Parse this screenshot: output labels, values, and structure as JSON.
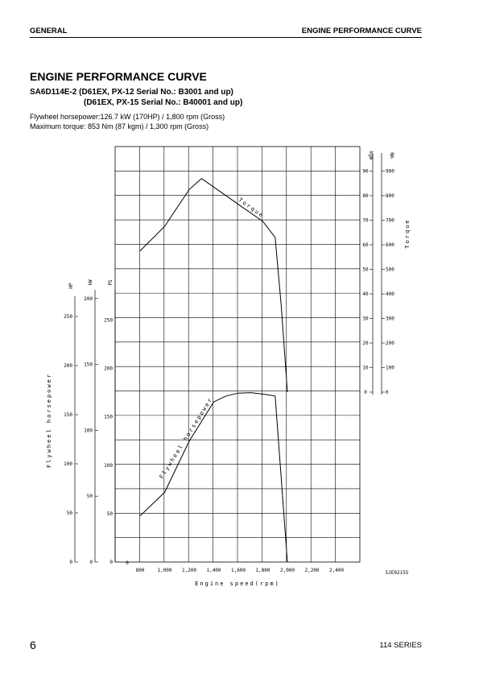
{
  "header": {
    "left": "GENERAL",
    "right": "ENGINE PERFORMANCE CURVE"
  },
  "title": "ENGINE PERFORMANCE CURVE",
  "model_line1": "SA6D114E-2 (D61EX, PX-12 Serial No.: B3001 and up)",
  "model_line2": "(D61EX, PX-15 Serial No.: B40001 and up)",
  "spec_horsepower": "Flywheel horsepower:126.7 kW (170HP) / 1,800 rpm (Gross)",
  "spec_torque": "Maximum torque: 853 Nm (87 kgm) / 1,300 rpm (Gross)",
  "footer": {
    "page": "6",
    "series": "114 SERIES"
  },
  "chart_data": {
    "type": "line",
    "figure_code": "SJE02155",
    "xlabel": "Engine speed(rpm)",
    "x_ticks": [
      "800",
      "1,000",
      "1,200",
      "1,400",
      "1,600",
      "1,800",
      "2,000",
      "2,200",
      "2,400"
    ],
    "x_zero_label": "0",
    "xlim": [
      600,
      2500
    ],
    "left_axes": {
      "hp": {
        "unit": "HP",
        "ticks": [
          "0",
          "50",
          "100",
          "150",
          "200",
          "250"
        ]
      },
      "kw": {
        "unit": "kW",
        "ticks": [
          "0",
          "50",
          "100",
          "150",
          "200"
        ]
      },
      "ps": {
        "unit": "PS",
        "ticks": [
          "0",
          "50",
          "100",
          "150",
          "200",
          "250"
        ]
      },
      "label": "Flywheel horsepower"
    },
    "right_axes": {
      "kgm": {
        "unit": "kgm",
        "ticks": [
          "0",
          "10",
          "20",
          "30",
          "40",
          "50",
          "60",
          "70",
          "80",
          "90"
        ]
      },
      "nm": {
        "unit": "Nm",
        "ticks": [
          "0",
          "100",
          "200",
          "300",
          "400",
          "500",
          "600",
          "700",
          "800",
          "900"
        ]
      },
      "label": "Torque"
    },
    "series": [
      {
        "name": "Torque",
        "axis": "kgm",
        "x": [
          800,
          1000,
          1200,
          1300,
          1400,
          1600,
          1800,
          1900,
          1950,
          2000
        ],
        "values": [
          57.5,
          67.5,
          82.5,
          87,
          83.5,
          76.5,
          69.5,
          63,
          35,
          0
        ]
      },
      {
        "name": "Flywheel horsepower",
        "axis": "hp",
        "x": [
          800,
          1000,
          1200,
          1400,
          1500,
          1600,
          1700,
          1800,
          1900,
          2000
        ],
        "values": [
          47,
          71,
          123,
          163,
          169,
          172,
          172.5,
          171,
          169,
          0
        ]
      }
    ],
    "grid": true
  }
}
